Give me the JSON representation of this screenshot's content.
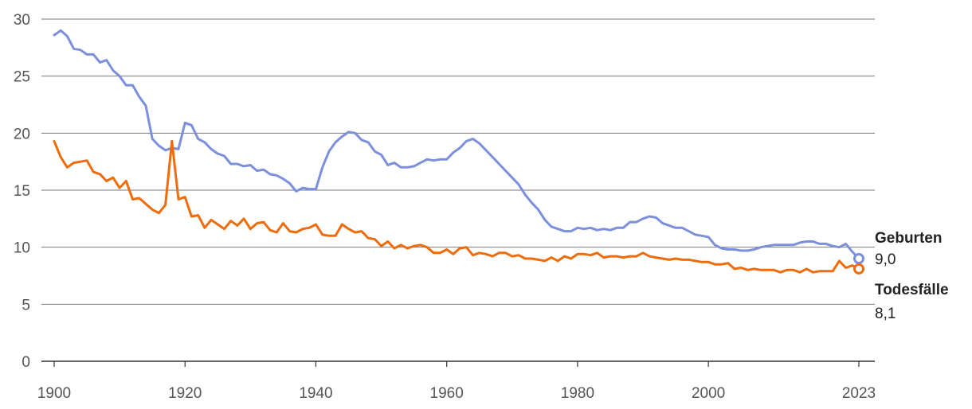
{
  "colors": {
    "geburten": "#7b8fdc",
    "todesfaelle": "#ee6c0b",
    "grid": "#7a7a7a",
    "baseline": "#333333",
    "tick_text": "#555555",
    "label_text": "#222222"
  },
  "chart_data": {
    "type": "line",
    "title": "",
    "xlabel": "",
    "ylabel": "",
    "xlim": [
      1900,
      2023
    ],
    "ylim": [
      0,
      30
    ],
    "grid": "horizontal",
    "legend": "end-of-line labels (right)",
    "x_ticks": [
      {
        "value": 1900,
        "label": "1900"
      },
      {
        "value": 1920,
        "label": "1920"
      },
      {
        "value": 1940,
        "label": "1940"
      },
      {
        "value": 1960,
        "label": "1960"
      },
      {
        "value": 1980,
        "label": "1980"
      },
      {
        "value": 2000,
        "label": "2000"
      },
      {
        "value": 2023,
        "label": "2023"
      }
    ],
    "y_ticks": [
      {
        "value": 0,
        "label": "0"
      },
      {
        "value": 5,
        "label": "5"
      },
      {
        "value": 10,
        "label": "10"
      },
      {
        "value": 15,
        "label": "15"
      },
      {
        "value": 20,
        "label": "20"
      },
      {
        "value": 25,
        "label": "25"
      },
      {
        "value": 30,
        "label": "30"
      }
    ],
    "x": [
      1900,
      1901,
      1902,
      1903,
      1904,
      1905,
      1906,
      1907,
      1908,
      1909,
      1910,
      1911,
      1912,
      1913,
      1914,
      1915,
      1916,
      1917,
      1918,
      1919,
      1920,
      1921,
      1922,
      1923,
      1924,
      1925,
      1926,
      1927,
      1928,
      1929,
      1930,
      1931,
      1932,
      1933,
      1934,
      1935,
      1936,
      1937,
      1938,
      1939,
      1940,
      1941,
      1942,
      1943,
      1944,
      1945,
      1946,
      1947,
      1948,
      1949,
      1950,
      1951,
      1952,
      1953,
      1954,
      1955,
      1956,
      1957,
      1958,
      1959,
      1960,
      1961,
      1962,
      1963,
      1964,
      1965,
      1966,
      1967,
      1968,
      1969,
      1970,
      1971,
      1972,
      1973,
      1974,
      1975,
      1976,
      1977,
      1978,
      1979,
      1980,
      1981,
      1982,
      1983,
      1984,
      1985,
      1986,
      1987,
      1988,
      1989,
      1990,
      1991,
      1992,
      1993,
      1994,
      1995,
      1996,
      1997,
      1998,
      1999,
      2000,
      2001,
      2002,
      2003,
      2004,
      2005,
      2006,
      2007,
      2008,
      2009,
      2010,
      2011,
      2012,
      2013,
      2014,
      2015,
      2016,
      2017,
      2018,
      2019,
      2020,
      2021,
      2022,
      2023
    ],
    "series": [
      {
        "name": "Geburten",
        "end_label": "9,0",
        "color": "#7b8fdc",
        "values": [
          28.6,
          29.0,
          28.5,
          27.4,
          27.3,
          26.9,
          26.9,
          26.2,
          26.4,
          25.5,
          25.0,
          24.2,
          24.2,
          23.2,
          22.4,
          19.5,
          18.9,
          18.5,
          18.7,
          18.6,
          20.9,
          20.7,
          19.5,
          19.2,
          18.6,
          18.2,
          18.0,
          17.3,
          17.3,
          17.1,
          17.2,
          16.7,
          16.8,
          16.4,
          16.3,
          16.0,
          15.6,
          14.9,
          15.2,
          15.1,
          15.1,
          17.0,
          18.4,
          19.2,
          19.7,
          20.1,
          20.0,
          19.4,
          19.2,
          18.4,
          18.1,
          17.2,
          17.4,
          17.0,
          17.0,
          17.1,
          17.4,
          17.7,
          17.6,
          17.7,
          17.7,
          18.3,
          18.7,
          19.3,
          19.5,
          19.1,
          18.5,
          17.9,
          17.3,
          16.7,
          16.1,
          15.5,
          14.6,
          13.9,
          13.3,
          12.4,
          11.8,
          11.6,
          11.4,
          11.4,
          11.7,
          11.6,
          11.7,
          11.5,
          11.6,
          11.5,
          11.7,
          11.7,
          12.2,
          12.2,
          12.5,
          12.7,
          12.6,
          12.1,
          11.9,
          11.7,
          11.7,
          11.4,
          11.1,
          11.0,
          10.9,
          10.2,
          9.9,
          9.8,
          9.8,
          9.7,
          9.7,
          9.8,
          10.0,
          10.1,
          10.2,
          10.2,
          10.2,
          10.2,
          10.4,
          10.5,
          10.5,
          10.3,
          10.3,
          10.1,
          10.0,
          10.3,
          9.6,
          9.0
        ]
      },
      {
        "name": "Todesfälle",
        "end_label": "8,1",
        "color": "#ee6c0b",
        "values": [
          19.3,
          17.9,
          17.0,
          17.4,
          17.5,
          17.6,
          16.6,
          16.4,
          15.8,
          16.1,
          15.2,
          15.8,
          14.2,
          14.3,
          13.8,
          13.3,
          13.0,
          13.7,
          19.3,
          14.2,
          14.4,
          12.7,
          12.8,
          11.7,
          12.4,
          12.0,
          11.6,
          12.3,
          11.9,
          12.5,
          11.6,
          12.1,
          12.2,
          11.5,
          11.3,
          12.1,
          11.4,
          11.3,
          11.6,
          11.7,
          12.0,
          11.1,
          11.0,
          11.0,
          12.0,
          11.6,
          11.3,
          11.4,
          10.8,
          10.7,
          10.1,
          10.5,
          9.9,
          10.2,
          9.9,
          10.1,
          10.2,
          10.0,
          9.5,
          9.5,
          9.8,
          9.4,
          9.9,
          10.0,
          9.3,
          9.5,
          9.4,
          9.2,
          9.5,
          9.5,
          9.2,
          9.3,
          9.0,
          9.0,
          8.9,
          8.8,
          9.1,
          8.8,
          9.2,
          9.0,
          9.4,
          9.4,
          9.3,
          9.5,
          9.1,
          9.2,
          9.2,
          9.1,
          9.2,
          9.2,
          9.5,
          9.2,
          9.1,
          9.0,
          8.9,
          9.0,
          8.9,
          8.9,
          8.8,
          8.7,
          8.7,
          8.5,
          8.5,
          8.6,
          8.1,
          8.2,
          8.0,
          8.1,
          8.0,
          8.0,
          8.0,
          7.8,
          8.0,
          8.0,
          7.8,
          8.1,
          7.8,
          7.9,
          7.9,
          7.9,
          8.8,
          8.2,
          8.4,
          8.1
        ]
      }
    ]
  }
}
